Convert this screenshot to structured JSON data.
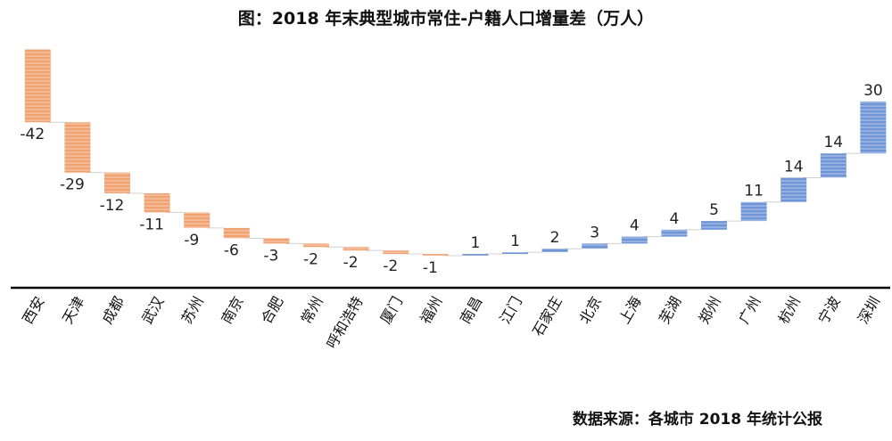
{
  "title": "图：2018 年末典型城市常住-户籍人口增量差（万人）",
  "source": "数据来源：各城市 2018 年统计公报",
  "colors": {
    "negative": "#F0A270",
    "positive": "#6F95D6",
    "baseline": "#000000",
    "connector": "#D0D0D0"
  },
  "chart_data": {
    "type": "bar",
    "title": "图：2018 年末典型城市常住-户籍人口增量差（万人）",
    "categories": [
      "西安",
      "天津",
      "成都",
      "武汉",
      "苏州",
      "南京",
      "合肥",
      "常州",
      "呼和浩特",
      "厦门",
      "福州",
      "南昌",
      "江门",
      "石家庄",
      "北京",
      "上海",
      "芜湖",
      "郑州",
      "广州",
      "杭州",
      "宁波",
      "深圳"
    ],
    "values": [
      -42,
      -29,
      -12,
      -11,
      -9,
      -6,
      -3,
      -2,
      -2,
      -2,
      -1,
      1,
      1,
      2,
      3,
      4,
      4,
      5,
      11,
      14,
      14,
      30
    ],
    "labels": [
      "-42",
      "-29",
      "-12",
      "-11",
      "-9",
      "-6",
      "-3",
      "-2",
      "-2",
      "-2",
      "-1",
      "1",
      "1",
      "2",
      "3",
      "4",
      "4",
      "5",
      "11",
      "14",
      "14",
      "30"
    ],
    "grid": false,
    "legend": "none"
  }
}
